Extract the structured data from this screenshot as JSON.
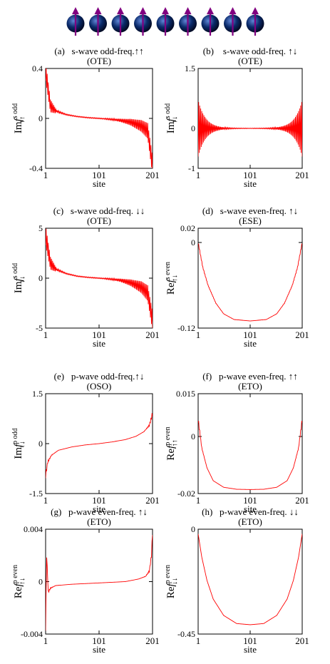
{
  "figure": {
    "spin_count": 9,
    "spin_direction": "up",
    "colors": {
      "curve": "#ff0000",
      "spin_arrow": "#800080",
      "sphere": "#0a2a6a"
    },
    "xlabel": "site"
  },
  "chart_data": [
    {
      "id": "a",
      "type": "line",
      "title": "(a)   s-wave odd-freq.↑↑",
      "subtitle": "(OTE)",
      "ylabel_main": "Im",
      "ylabel_f": "f",
      "ylabel_sup": "s odd",
      "ylabel_sub": "↑↑",
      "xlim": [
        1,
        201
      ],
      "ylim": [
        -0.4,
        0.4
      ],
      "xticks": [
        1,
        101,
        201
      ],
      "xtick_labels": [
        "1",
        "101",
        "201"
      ],
      "yticks": [
        0.4,
        0,
        -0.4
      ],
      "ytick_labels": [
        "0.4",
        "0",
        "-0.4"
      ],
      "xlabel": "site",
      "points": [
        [
          1,
          0.38
        ],
        [
          10,
          0.1
        ],
        [
          20,
          0.06
        ],
        [
          40,
          0.03
        ],
        [
          60,
          0.015
        ],
        [
          80,
          0.006
        ],
        [
          101,
          0.0
        ],
        [
          120,
          -0.006
        ],
        [
          140,
          -0.015
        ],
        [
          160,
          -0.03
        ],
        [
          180,
          -0.06
        ],
        [
          192,
          -0.1
        ],
        [
          201,
          -0.38
        ]
      ],
      "oscillation": "tail"
    },
    {
      "id": "b",
      "type": "line",
      "title": "(b)    s-wave odd-freq. ↑↓",
      "subtitle": "(OTE)",
      "ylabel_main": "Im",
      "ylabel_f": "f",
      "ylabel_sup": "s odd",
      "ylabel_sub": "↑↓",
      "xlim": [
        1,
        201
      ],
      "ylim": [
        -1,
        1.5
      ],
      "xticks": [
        1,
        101,
        201
      ],
      "xtick_labels": [
        "1",
        "101",
        "201"
      ],
      "yticks": [
        1.5,
        0,
        -1
      ],
      "ytick_labels": [
        "1.5",
        "0",
        "-1"
      ],
      "xlabel": "site",
      "points": [
        [
          1,
          0
        ],
        [
          101,
          0
        ],
        [
          201,
          0
        ]
      ],
      "oscillation": "symmetric",
      "envelope": 0.7
    },
    {
      "id": "c",
      "type": "line",
      "title": "(c)   s-wave odd-freq. ↓↓",
      "subtitle": "(OTE)",
      "ylabel_main": "Im",
      "ylabel_f": "f",
      "ylabel_sup": "s odd",
      "ylabel_sub": "↓↓",
      "xlim": [
        1,
        201
      ],
      "ylim": [
        -5,
        5
      ],
      "xticks": [
        1,
        101,
        201
      ],
      "xtick_labels": [
        "1",
        "101",
        "201"
      ],
      "yticks": [
        5,
        0,
        -5
      ],
      "ytick_labels": [
        "5",
        "0",
        "-5"
      ],
      "xlabel": "site",
      "points": [
        [
          1,
          4.3
        ],
        [
          10,
          1.5
        ],
        [
          20,
          0.9
        ],
        [
          40,
          0.45
        ],
        [
          60,
          0.2
        ],
        [
          80,
          0.08
        ],
        [
          101,
          0.0
        ],
        [
          120,
          -0.08
        ],
        [
          140,
          -0.2
        ],
        [
          160,
          -0.45
        ],
        [
          180,
          -0.9
        ],
        [
          192,
          -1.5
        ],
        [
          201,
          -4.3
        ]
      ],
      "oscillation": "tail"
    },
    {
      "id": "d",
      "type": "line",
      "title": "(d)   s-wave even-freq. ↑↓",
      "subtitle": "(ESE)",
      "ylabel_main": "Re",
      "ylabel_f": "f",
      "ylabel_sup": "s even",
      "ylabel_sub": "↑↓",
      "xlim": [
        1,
        201
      ],
      "ylim": [
        -0.12,
        0.02
      ],
      "xticks": [
        1,
        101,
        201
      ],
      "xtick_labels": [
        "1",
        "101",
        "201"
      ],
      "yticks": [
        0.02,
        0,
        -0.12
      ],
      "ytick_labels": [
        "0.02",
        "0",
        "-0.12"
      ],
      "xlabel": "site",
      "points": [
        [
          1,
          0.0
        ],
        [
          10,
          -0.035
        ],
        [
          20,
          -0.06
        ],
        [
          35,
          -0.085
        ],
        [
          50,
          -0.1
        ],
        [
          70,
          -0.108
        ],
        [
          101,
          -0.11
        ],
        [
          132,
          -0.108
        ],
        [
          152,
          -0.1
        ],
        [
          167,
          -0.085
        ],
        [
          182,
          -0.06
        ],
        [
          192,
          -0.035
        ],
        [
          201,
          0.0
        ]
      ],
      "oscillation": "light"
    },
    {
      "id": "e",
      "type": "line",
      "title": "(e)   p-wave odd-freq.↑↓",
      "subtitle": "(OSO)",
      "ylabel_main": "Im",
      "ylabel_f": "f",
      "ylabel_sup": "p odd",
      "ylabel_sub": "↑↓",
      "xlim": [
        1,
        201
      ],
      "ylim": [
        -1.5,
        1.5
      ],
      "xticks": [
        1,
        101,
        201
      ],
      "xtick_labels": [
        "1",
        "101",
        "201"
      ],
      "yticks": [
        1.5,
        0,
        -1.5
      ],
      "ytick_labels": [
        "1.5",
        "0",
        "-1.5"
      ],
      "xlabel": "site",
      "points": [
        [
          1,
          -0.95
        ],
        [
          5,
          -0.55
        ],
        [
          12,
          -0.35
        ],
        [
          25,
          -0.2
        ],
        [
          50,
          -0.1
        ],
        [
          75,
          -0.04
        ],
        [
          101,
          0.0
        ],
        [
          125,
          0.05
        ],
        [
          150,
          0.12
        ],
        [
          170,
          0.22
        ],
        [
          185,
          0.36
        ],
        [
          195,
          0.55
        ],
        [
          201,
          0.9
        ]
      ],
      "oscillation": "end"
    },
    {
      "id": "f",
      "type": "line",
      "title": "(f)   p-wave even-freq. ↑↑",
      "subtitle": "(ETO)",
      "ylabel_main": "Re",
      "ylabel_f": "f",
      "ylabel_sup": "p even",
      "ylabel_sub": "↑↑",
      "xlim": [
        1,
        201
      ],
      "ylim": [
        -0.02,
        0.015
      ],
      "xticks": [
        1,
        101,
        201
      ],
      "xtick_labels": [
        "1",
        "101",
        "201"
      ],
      "yticks": [
        0.015,
        0,
        -0.02
      ],
      "ytick_labels": [
        "0.015",
        "0",
        "-0.02"
      ],
      "xlabel": "site",
      "points": [
        [
          1,
          0.006
        ],
        [
          8,
          -0.004
        ],
        [
          18,
          -0.011
        ],
        [
          30,
          -0.0155
        ],
        [
          50,
          -0.0178
        ],
        [
          75,
          -0.0185
        ],
        [
          101,
          -0.0186
        ],
        [
          127,
          -0.0185
        ],
        [
          152,
          -0.0178
        ],
        [
          172,
          -0.0155
        ],
        [
          184,
          -0.011
        ],
        [
          194,
          -0.004
        ],
        [
          201,
          0.006
        ]
      ],
      "oscillation": "end"
    },
    {
      "id": "g",
      "type": "line",
      "title": "(g)   p-wave even-freq. ↑↓",
      "subtitle": "(ETO)",
      "ylabel_main": "Re",
      "ylabel_f": "f",
      "ylabel_sup": "p even",
      "ylabel_sub": "↑↓",
      "xlim": [
        1,
        201
      ],
      "ylim": [
        -0.004,
        0.004
      ],
      "xticks": [
        1,
        101,
        201
      ],
      "xtick_labels": [
        "1",
        "101",
        "201"
      ],
      "yticks": [
        0.004,
        0,
        -0.004
      ],
      "ytick_labels": [
        "0.004",
        "0",
        "-0.004"
      ],
      "xlabel": "site",
      "points": [
        [
          1,
          -0.0035
        ],
        [
          3,
          0.002
        ],
        [
          6,
          -0.0008
        ],
        [
          10,
          -0.0005
        ],
        [
          20,
          -0.0003
        ],
        [
          50,
          -0.0002
        ],
        [
          101,
          -0.0001
        ],
        [
          150,
          0.0
        ],
        [
          175,
          0.0002
        ],
        [
          188,
          0.0004
        ],
        [
          195,
          0.0008
        ],
        [
          199,
          0.002
        ],
        [
          201,
          0.0038
        ]
      ],
      "oscillation": "end"
    },
    {
      "id": "h",
      "type": "line",
      "title": "(h)   p-wave even-freq. ↓↓",
      "subtitle": "(ETO)",
      "ylabel_main": "Re",
      "ylabel_f": "f",
      "ylabel_sup": "p even",
      "ylabel_sub": "↓↓",
      "xlim": [
        1,
        201
      ],
      "ylim": [
        -0.45,
        0
      ],
      "xticks": [
        1,
        101,
        201
      ],
      "xtick_labels": [
        "1",
        "101",
        "201"
      ],
      "yticks": [
        0,
        -0.45
      ],
      "ytick_labels": [
        "0",
        "-0.45"
      ],
      "xlabel": "site",
      "points": [
        [
          1,
          -0.02
        ],
        [
          8,
          -0.12
        ],
        [
          18,
          -0.22
        ],
        [
          30,
          -0.3
        ],
        [
          50,
          -0.37
        ],
        [
          75,
          -0.405
        ],
        [
          101,
          -0.41
        ],
        [
          127,
          -0.405
        ],
        [
          152,
          -0.37
        ],
        [
          172,
          -0.3
        ],
        [
          184,
          -0.22
        ],
        [
          194,
          -0.12
        ],
        [
          201,
          -0.02
        ]
      ],
      "oscillation": "none"
    }
  ]
}
